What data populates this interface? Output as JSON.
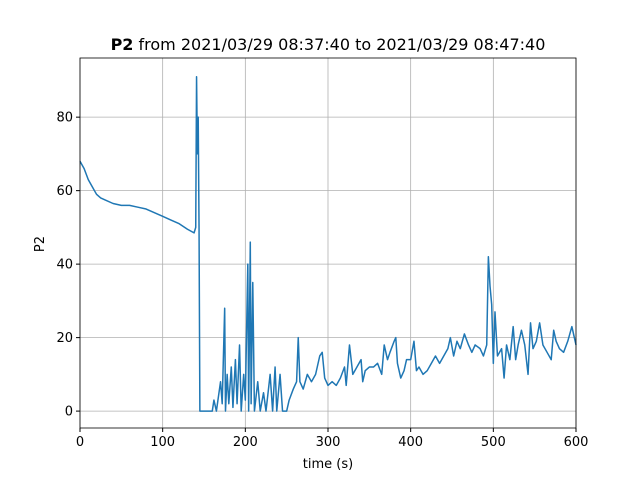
{
  "chart_data": {
    "type": "line",
    "title_bold": "P2",
    "title": "from 2021/03/29 08:37:40 to 2021/03/29 08:47:40",
    "xlabel": "time (s)",
    "ylabel": "P2",
    "xlim": [
      0,
      600
    ],
    "xticks": [
      0,
      100,
      200,
      300,
      400,
      500,
      600
    ],
    "ylim": [
      -4.6,
      96.1
    ],
    "yticks": [
      0,
      20,
      40,
      60,
      80
    ],
    "grid": true,
    "x": [
      0,
      5,
      10,
      15,
      20,
      25,
      30,
      40,
      50,
      60,
      70,
      80,
      90,
      100,
      110,
      120,
      130,
      138,
      140,
      141,
      142,
      143,
      144,
      145,
      160,
      162,
      165,
      170,
      172,
      175,
      176,
      178,
      180,
      183,
      185,
      188,
      190,
      193,
      195,
      198,
      200,
      203,
      204,
      206,
      207,
      209,
      211,
      215,
      218,
      222,
      225,
      230,
      233,
      236,
      238,
      242,
      245,
      250,
      253,
      258,
      262,
      264,
      266,
      270,
      275,
      280,
      285,
      290,
      293,
      296,
      300,
      305,
      310,
      315,
      320,
      322,
      326,
      330,
      335,
      340,
      342,
      345,
      350,
      355,
      360,
      365,
      368,
      372,
      375,
      380,
      382,
      384,
      388,
      392,
      395,
      400,
      404,
      407,
      410,
      415,
      420,
      425,
      430,
      435,
      440,
      445,
      448,
      452,
      456,
      460,
      465,
      470,
      474,
      478,
      484,
      488,
      492,
      494,
      496,
      498,
      500,
      502,
      505,
      510,
      513,
      516,
      520,
      524,
      527,
      530,
      534,
      538,
      542,
      545,
      548,
      552,
      556,
      560,
      565,
      570,
      573,
      576,
      580,
      585,
      590,
      595,
      600
    ],
    "series": [
      {
        "name": "P2",
        "color": "#1f77b4",
        "values": [
          68,
          66,
          63,
          61,
          59,
          58,
          57.5,
          56.5,
          56,
          56,
          55.5,
          55,
          54,
          53,
          52,
          51,
          49.5,
          48.5,
          50,
          91,
          70,
          80,
          50,
          0,
          0,
          3,
          0,
          8,
          2,
          28,
          0,
          10,
          2,
          12,
          1,
          14,
          2,
          18,
          0,
          10,
          3,
          40,
          0,
          46,
          2,
          35,
          0,
          8,
          0,
          5,
          0,
          10,
          0,
          12,
          0,
          10,
          0,
          0,
          3,
          6,
          8,
          20,
          8,
          6,
          10,
          8,
          10,
          15,
          16,
          9,
          7,
          8,
          7,
          9,
          12,
          7,
          18,
          10,
          12,
          14,
          8,
          11,
          12,
          12,
          13,
          10,
          18,
          14,
          16,
          19,
          20,
          13,
          9,
          11,
          14,
          14,
          19,
          11,
          12,
          10,
          11,
          13,
          15,
          13,
          15,
          17,
          20,
          15,
          19,
          17,
          21,
          18,
          16,
          18,
          17,
          15,
          18,
          42,
          34,
          29,
          13,
          27,
          15,
          17,
          9,
          18,
          14,
          23,
          14,
          18,
          22,
          18,
          10,
          24,
          17,
          19,
          24,
          18,
          16,
          14,
          22,
          19,
          17,
          16,
          19,
          23,
          18
        ]
      }
    ]
  }
}
